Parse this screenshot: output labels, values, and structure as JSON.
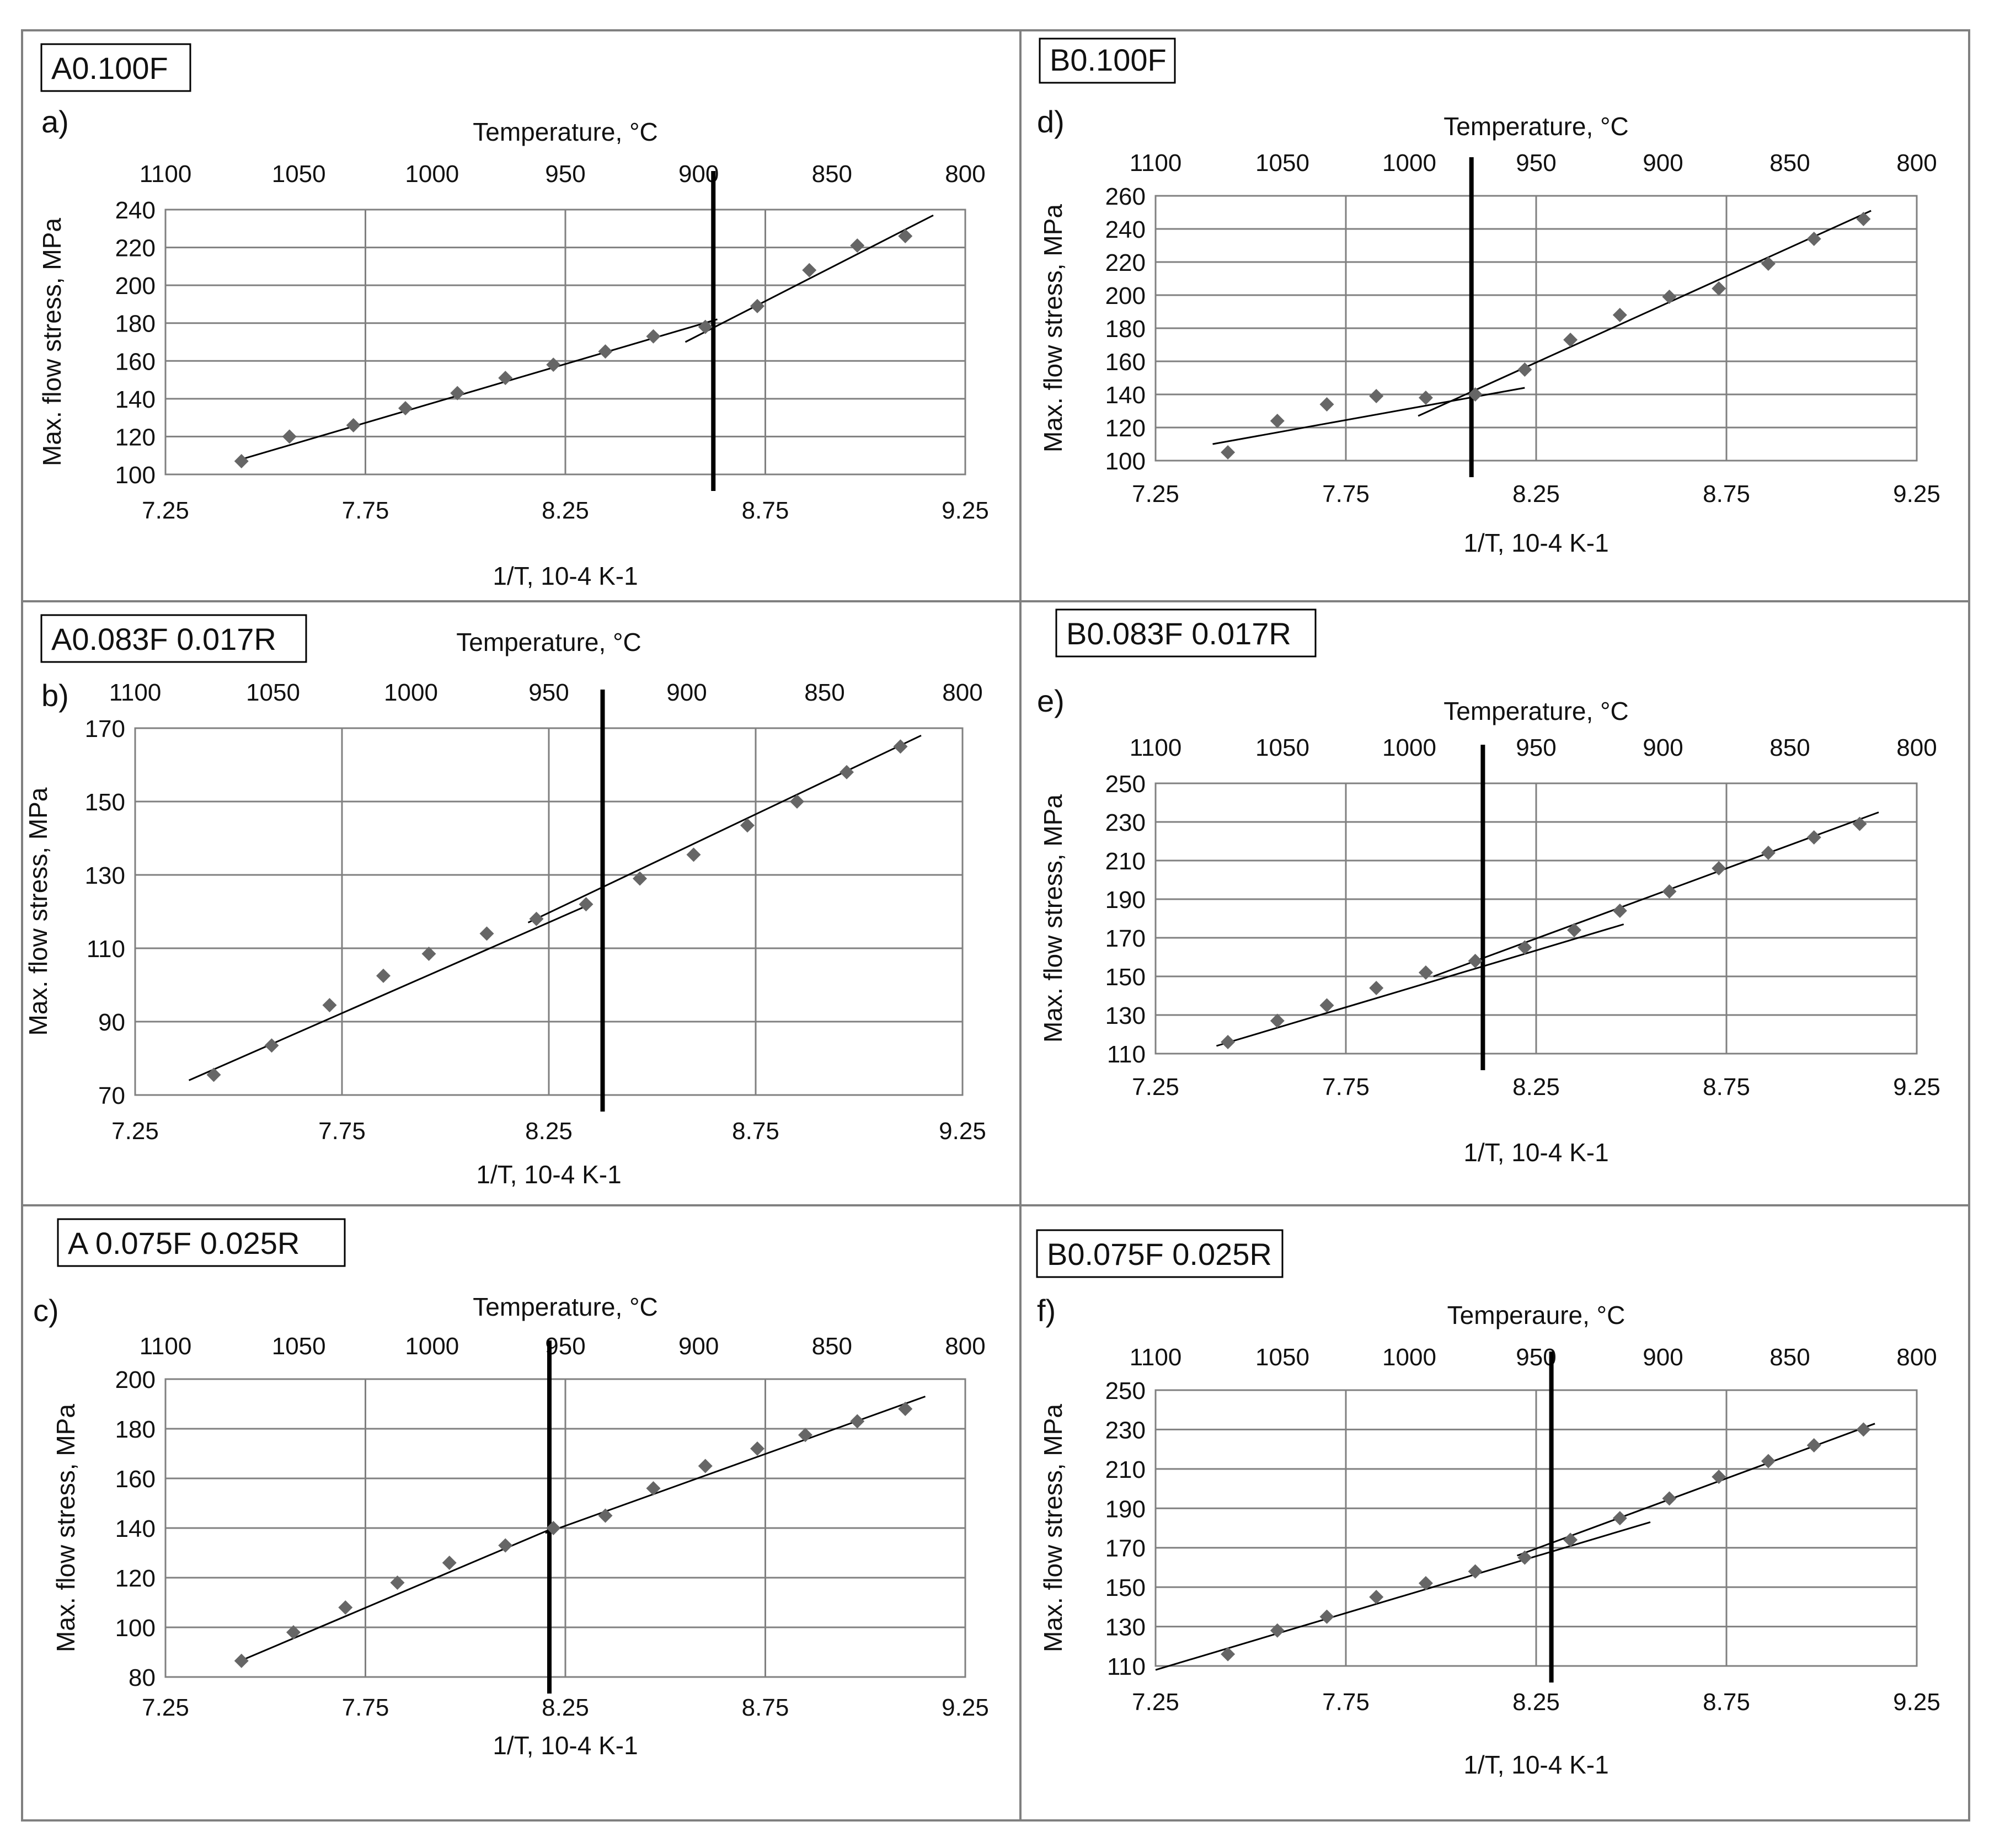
{
  "figure": {
    "background": "#ffffff",
    "grid_color": "#808080",
    "marker_color": "#666666",
    "line_color": "#000000"
  },
  "chart_data": [
    {
      "id": "a",
      "type": "scatter",
      "title": "A0.100F",
      "panel_label": "a)",
      "xlabel": "1/T, 10-4 K-1",
      "ylabel": "Max. flow stress, MPa",
      "x2label": "Temperature, °C",
      "xlim": [
        7.25,
        9.25
      ],
      "ylim": [
        100,
        240
      ],
      "xticks": [
        "7.25",
        "7.75",
        "8.25",
        "8.75",
        "9.25"
      ],
      "yticks": [
        "100",
        "120",
        "140",
        "160",
        "180",
        "200",
        "220",
        "240"
      ],
      "x2ticks": [
        "1100",
        "1050",
        "1000",
        "950",
        "900",
        "850",
        "800"
      ],
      "x": [
        7.44,
        7.56,
        7.72,
        7.85,
        7.98,
        8.1,
        8.22,
        8.35,
        8.47,
        8.6,
        8.73,
        8.86,
        8.98,
        9.1
      ],
      "y": [
        107,
        120,
        126,
        135,
        143,
        151,
        158,
        165,
        173,
        178,
        189,
        208,
        221,
        226
      ],
      "fit_lines": [
        {
          "x": [
            7.44,
            8.63
          ],
          "y": [
            108,
            182
          ]
        },
        {
          "x": [
            8.55,
            9.17
          ],
          "y": [
            170,
            237
          ]
        }
      ],
      "transition_x": 8.62
    },
    {
      "id": "b",
      "type": "scatter",
      "title": "A0.083F 0.017R",
      "panel_label": "b)",
      "xlabel": "1/T, 10-4 K-1",
      "ylabel": "Max. flow stress, MPa",
      "x2label": "Temperature, °C",
      "xlim": [
        7.25,
        9.25
      ],
      "ylim": [
        70,
        170
      ],
      "xticks": [
        "7.25",
        "7.75",
        "8.25",
        "8.75",
        "9.25"
      ],
      "yticks": [
        "70",
        "90",
        "110",
        "130",
        "150",
        "170"
      ],
      "x2ticks": [
        "1100",
        "1050",
        "1000",
        "950",
        "900",
        "850",
        "800"
      ],
      "x": [
        7.44,
        7.58,
        7.72,
        7.85,
        7.96,
        8.1,
        8.22,
        8.34,
        8.47,
        8.6,
        8.73,
        8.85,
        8.97,
        9.1
      ],
      "y": [
        75.5,
        83.5,
        94.5,
        102.5,
        108.5,
        114,
        118,
        122,
        129,
        135.5,
        143.5,
        150,
        158,
        165
      ],
      "fit_lines": [
        {
          "x": [
            7.38,
            8.35
          ],
          "y": [
            74,
            122
          ]
        },
        {
          "x": [
            8.2,
            9.15
          ],
          "y": [
            117,
            168
          ]
        }
      ],
      "transition_x": 8.38
    },
    {
      "id": "c",
      "type": "scatter",
      "title": "A 0.075F 0.025R",
      "panel_label": "c)",
      "xlabel": "1/T, 10-4 K-1",
      "ylabel": "Max. flow stress, MPa",
      "x2label": "Temperature, °C",
      "xlim": [
        7.25,
        9.25
      ],
      "ylim": [
        80,
        200
      ],
      "xticks": [
        "7.25",
        "7.75",
        "8.25",
        "8.75",
        "9.25"
      ],
      "yticks": [
        "80",
        "100",
        "120",
        "140",
        "160",
        "180",
        "200"
      ],
      "x2ticks": [
        "1100",
        "1050",
        "1000",
        "950",
        "900",
        "850",
        "800"
      ],
      "x": [
        7.44,
        7.57,
        7.7,
        7.83,
        7.96,
        8.1,
        8.22,
        8.35,
        8.47,
        8.6,
        8.73,
        8.85,
        8.98,
        9.1
      ],
      "y": [
        86.5,
        98,
        108,
        118,
        126,
        133,
        140,
        145,
        156,
        165,
        172,
        177.5,
        183,
        188
      ],
      "fit_lines": [
        {
          "x": [
            7.43,
            8.22
          ],
          "y": [
            86,
            140
          ]
        },
        {
          "x": [
            8.2,
            9.15
          ],
          "y": [
            138,
            193
          ]
        }
      ],
      "transition_x": 8.21
    },
    {
      "id": "d",
      "type": "scatter",
      "title": "B0.100F",
      "panel_label": "d)",
      "xlabel": "1/T, 10-4 K-1",
      "ylabel": "Max. flow stress, MPa",
      "x2label": "Temperature, °C",
      "xlim": [
        7.25,
        9.25
      ],
      "ylim": [
        100,
        260
      ],
      "xticks": [
        "7.25",
        "7.75",
        "8.25",
        "8.75",
        "9.25"
      ],
      "yticks": [
        "100",
        "120",
        "140",
        "160",
        "180",
        "200",
        "220",
        "240",
        "260"
      ],
      "x2ticks": [
        "1100",
        "1050",
        "1000",
        "950",
        "900",
        "850",
        "800"
      ],
      "x": [
        7.44,
        7.57,
        7.7,
        7.83,
        7.96,
        8.09,
        8.22,
        8.34,
        8.47,
        8.6,
        8.73,
        8.86,
        8.98,
        9.11
      ],
      "y": [
        105,
        124,
        134,
        139,
        138,
        140,
        155,
        173,
        188,
        199,
        204,
        219,
        234,
        246
      ],
      "fit_lines": [
        {
          "x": [
            7.4,
            8.22
          ],
          "y": [
            110,
            144
          ]
        },
        {
          "x": [
            7.94,
            9.13
          ],
          "y": [
            127,
            251
          ]
        }
      ],
      "transition_x": 8.08
    },
    {
      "id": "e",
      "type": "scatter",
      "title": "B0.083F 0.017R",
      "panel_label": "e)",
      "xlabel": "1/T, 10-4 K-1",
      "ylabel": "Max. flow stress, MPa",
      "x2label": "Temperature, °C",
      "xlim": [
        7.25,
        9.25
      ],
      "ylim": [
        110,
        250
      ],
      "xticks": [
        "7.25",
        "7.75",
        "8.25",
        "8.75",
        "9.25"
      ],
      "yticks": [
        "110",
        "130",
        "150",
        "170",
        "190",
        "210",
        "230",
        "250"
      ],
      "x2ticks": [
        "1100",
        "1050",
        "1000",
        "950",
        "900",
        "850",
        "800"
      ],
      "x": [
        7.44,
        7.57,
        7.7,
        7.83,
        7.96,
        8.09,
        8.22,
        8.35,
        8.47,
        8.6,
        8.73,
        8.86,
        8.98,
        9.1
      ],
      "y": [
        116,
        127,
        135,
        144,
        152,
        158,
        165,
        174,
        184,
        194,
        206,
        214,
        222,
        229
      ],
      "fit_lines": [
        {
          "x": [
            7.41,
            8.48
          ],
          "y": [
            114,
            177
          ]
        },
        {
          "x": [
            7.98,
            9.15
          ],
          "y": [
            150,
            235
          ]
        }
      ],
      "transition_x": 8.11
    },
    {
      "id": "f",
      "type": "scatter",
      "title": "B0.075F 0.025R",
      "panel_label": "f)",
      "xlabel": "1/T, 10-4 K-1",
      "ylabel": "Max. flow stress, MPa",
      "x2label": "Temperaure, °C",
      "xlim": [
        7.25,
        9.25
      ],
      "ylim": [
        110,
        250
      ],
      "xticks": [
        "7.25",
        "7.75",
        "8.25",
        "8.75",
        "9.25"
      ],
      "yticks": [
        "110",
        "130",
        "150",
        "170",
        "190",
        "210",
        "230",
        "250"
      ],
      "x2ticks": [
        "1100",
        "1050",
        "1000",
        "950",
        "900",
        "850",
        "800"
      ],
      "x": [
        7.44,
        7.57,
        7.7,
        7.83,
        7.96,
        8.09,
        8.22,
        8.34,
        8.47,
        8.6,
        8.73,
        8.86,
        8.98,
        9.11
      ],
      "y": [
        116,
        128,
        135,
        145,
        152,
        158,
        165,
        174,
        185,
        195,
        206,
        214,
        222,
        230
      ],
      "fit_lines": [
        {
          "x": [
            7.25,
            8.55
          ],
          "y": [
            108,
            183
          ]
        },
        {
          "x": [
            8.2,
            9.14
          ],
          "y": [
            166,
            233
          ]
        }
      ],
      "transition_x": 8.29
    }
  ]
}
